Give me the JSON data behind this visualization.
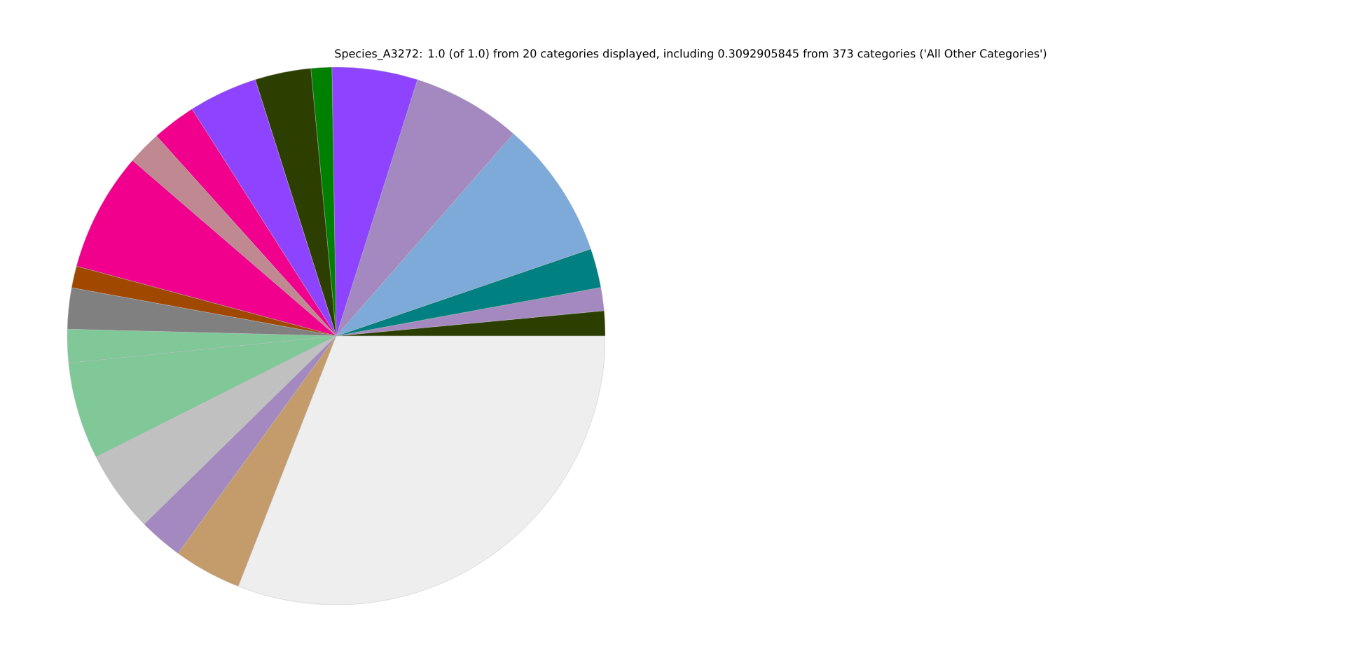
{
  "chart_data": {
    "type": "pie",
    "title": "Species_A3272: 1.0 (of 1.0) from 20 categories displayed, including 0.3092905845 from 373 categories ('All Other Categories')",
    "categories": [
      null,
      null,
      null,
      null,
      null,
      null,
      null,
      null,
      null,
      null,
      null,
      null,
      null,
      null,
      null,
      null,
      null,
      null,
      null,
      null
    ],
    "values": [
      1.5,
      1.39,
      2.36,
      8.31,
      6.56,
      5.14,
      1.25,
      3.36,
      4.14,
      2.64,
      2.03,
      7.14,
      1.31,
      2.47,
      2.0,
      5.83,
      4.92,
      2.64,
      4.08,
      30.93
    ],
    "colors": [
      "#2d3f00",
      "#a389c0",
      "#008080",
      "#7eaad9",
      "#a389c0",
      "#8e44ff",
      "#008000",
      "#2d3f00",
      "#8e44ff",
      "#f0008c",
      "#c08890",
      "#f0008c",
      "#a04800",
      "#808080",
      "#80c898",
      "#80c898",
      "#c0c0c0",
      "#a389c0",
      "#c49c6c",
      "#eeeeee"
    ]
  }
}
